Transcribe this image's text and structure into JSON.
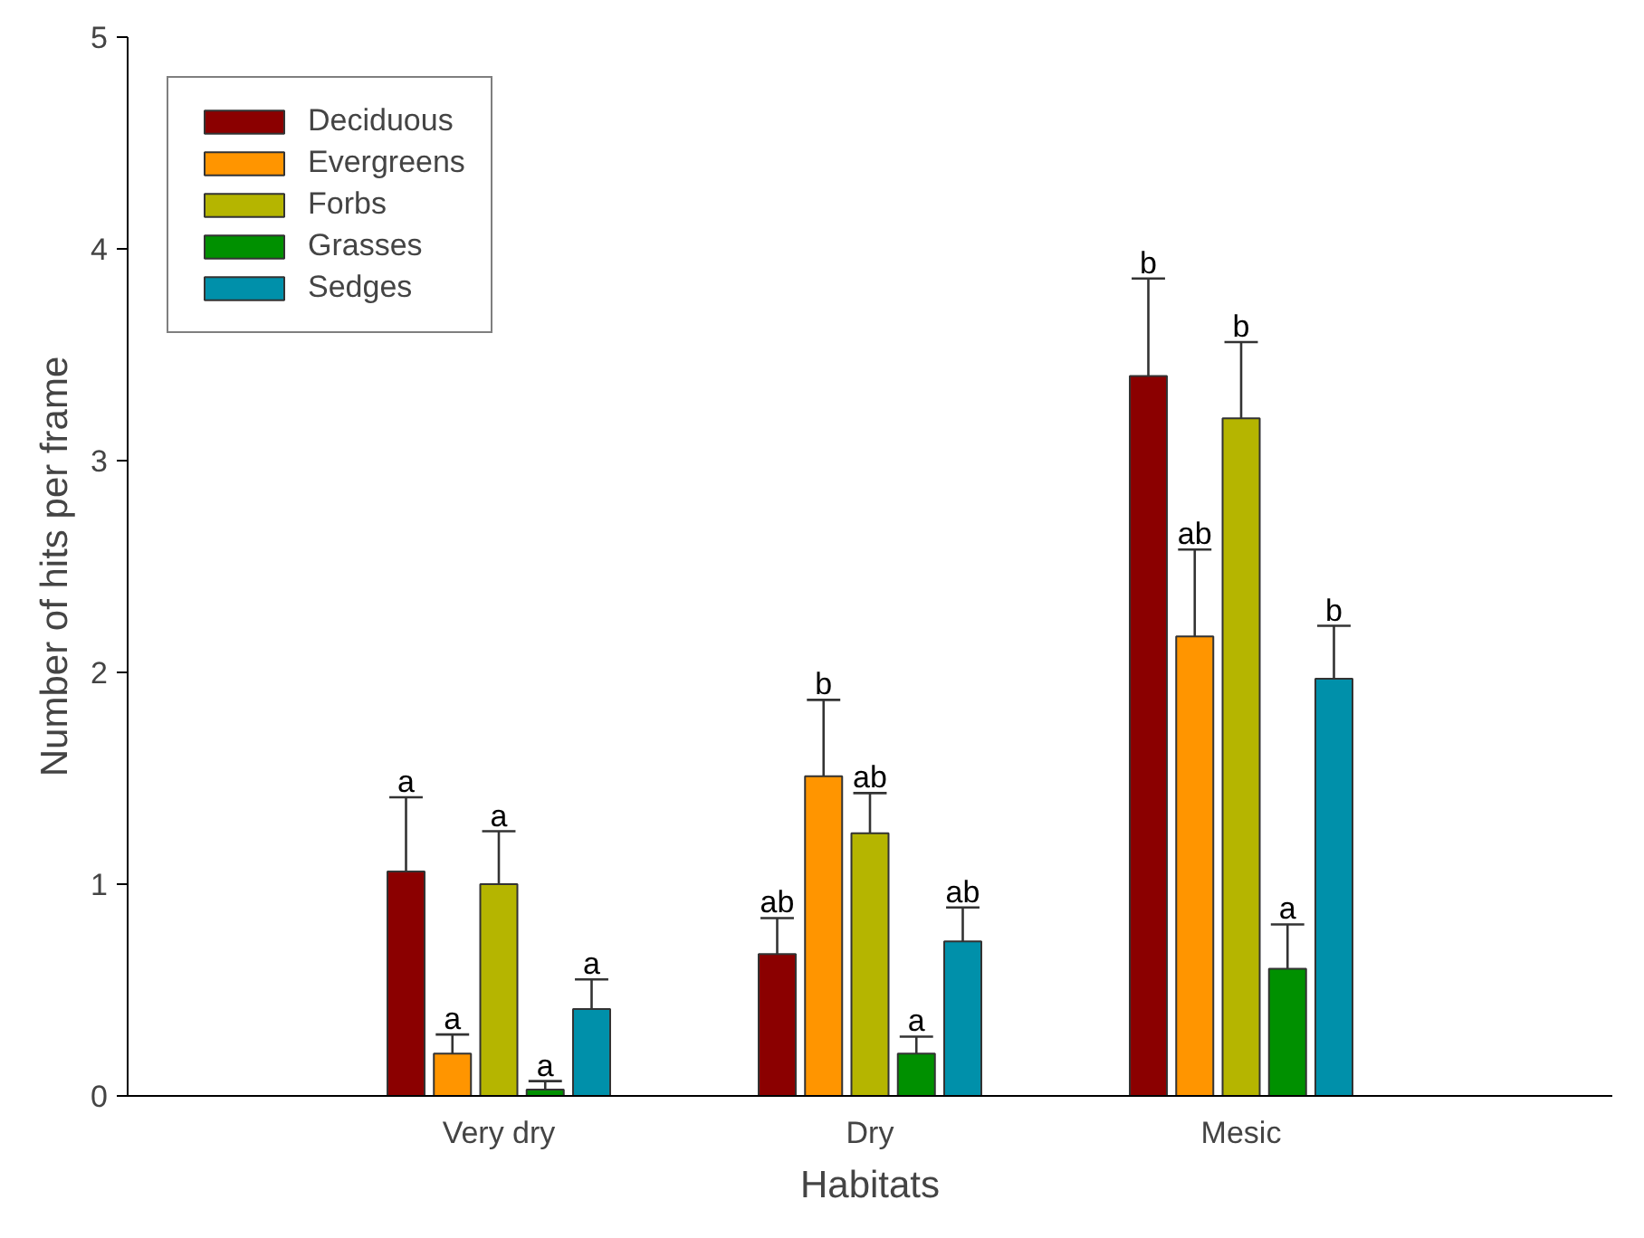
{
  "chart_data": {
    "type": "bar",
    "xlabel": "Habitats",
    "ylabel": "Number of hits per frame",
    "categories": [
      "Very dry",
      "Dry",
      "Mesic"
    ],
    "ylim": [
      0,
      5
    ],
    "yticks": [
      0,
      1,
      2,
      3,
      4,
      5
    ],
    "grid": false,
    "legend": "top left",
    "series": [
      {
        "name": "Deciduous",
        "color": "#8b0000",
        "values": [
          1.06,
          0.67,
          3.4
        ],
        "errors": [
          [
            1.06,
            1.41
          ],
          [
            0.67,
            0.84
          ],
          [
            3.4,
            3.86
          ]
        ],
        "value_labels": [
          "a",
          "ab",
          "b"
        ]
      },
      {
        "name": "Evergreens",
        "color": "#ff9500",
        "values": [
          0.2,
          1.51,
          2.17
        ],
        "errors": [
          [
            0.2,
            0.29
          ],
          [
            1.51,
            1.87
          ],
          [
            2.17,
            2.58
          ]
        ],
        "value_labels": [
          "a",
          "b",
          "ab"
        ]
      },
      {
        "name": "Forbs",
        "color": "#b5b500",
        "values": [
          1.0,
          1.24,
          3.2
        ],
        "errors": [
          [
            1.0,
            1.25
          ],
          [
            1.24,
            1.43
          ],
          [
            3.2,
            3.56
          ]
        ],
        "value_labels": [
          "a",
          "ab",
          "b"
        ]
      },
      {
        "name": "Grasses",
        "color": "#009000",
        "values": [
          0.03,
          0.2,
          0.6
        ],
        "errors": [
          [
            0.03,
            0.07
          ],
          [
            0.2,
            0.28
          ],
          [
            0.6,
            0.81
          ]
        ],
        "value_labels": [
          "a",
          "a",
          "a"
        ]
      },
      {
        "name": "Sedges",
        "color": "#0090aa",
        "values": [
          0.41,
          0.73,
          1.97
        ],
        "errors": [
          [
            0.41,
            0.55
          ],
          [
            0.73,
            0.89
          ],
          [
            1.97,
            2.22
          ]
        ],
        "value_labels": [
          "a",
          "ab",
          "b"
        ]
      }
    ]
  }
}
